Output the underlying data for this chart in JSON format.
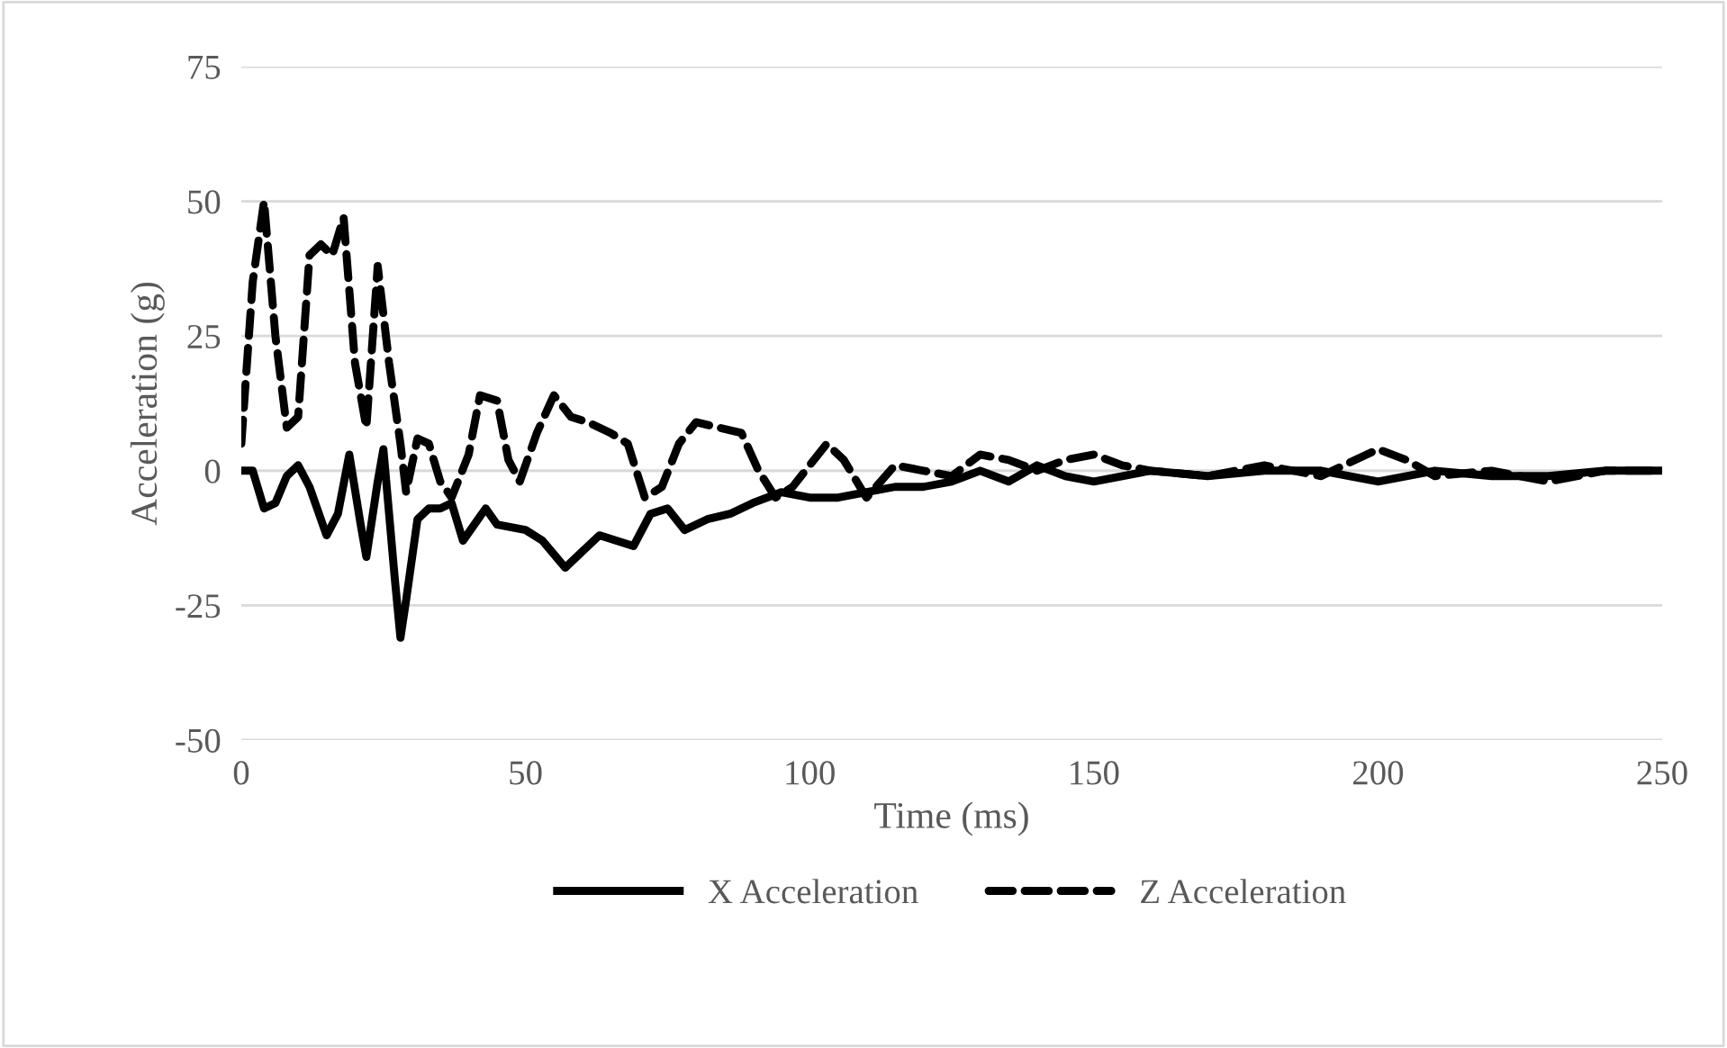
{
  "chart_data": {
    "type": "line",
    "xlabel": "Time (ms)",
    "ylabel": "Acceleration (g)",
    "xlim": [
      0,
      250
    ],
    "xticks": [
      0,
      50,
      100,
      150,
      200,
      250
    ],
    "ylim": [
      -50,
      75
    ],
    "yticks": [
      -50,
      -25,
      0,
      25,
      50,
      75
    ],
    "grid": "y",
    "legend": "bottom",
    "marker": "none",
    "series": [
      {
        "name": "X Acceleration",
        "color": "#000000",
        "line_style": "solid",
        "x": [
          0,
          2,
          4,
          6,
          8,
          10,
          12,
          15,
          17,
          19,
          21,
          22,
          24,
          25,
          27,
          28,
          29,
          31,
          33,
          35,
          37,
          39,
          41,
          43,
          45,
          50,
          53,
          57,
          60,
          63,
          66,
          69,
          72,
          75,
          78,
          82,
          86,
          90,
          95,
          100,
          105,
          110,
          115,
          120,
          125,
          130,
          135,
          140,
          145,
          150,
          155,
          160,
          170,
          180,
          190,
          200,
          210,
          220,
          230,
          240,
          250
        ],
        "values": [
          0,
          0,
          -7,
          -6,
          -1,
          1,
          -3,
          -12,
          -8,
          3,
          -10,
          -16,
          -2,
          4,
          -20,
          -31,
          -24,
          -9,
          -7,
          -7,
          -6,
          -13,
          -10,
          -7,
          -10,
          -11,
          -13,
          -18,
          -15,
          -12,
          -13,
          -14,
          -8,
          -7,
          -11,
          -9,
          -8,
          -6,
          -4,
          -5,
          -5,
          -4,
          -3,
          -3,
          -2,
          0,
          -2,
          1,
          -1,
          -2,
          -1,
          0,
          -1,
          0,
          0,
          -2,
          0,
          -1,
          -1,
          0,
          0
        ]
      },
      {
        "name": "Z Acceleration",
        "color": "#000000",
        "line_style": "dashed",
        "x": [
          0,
          2,
          4,
          6,
          8,
          10,
          12,
          14,
          16,
          18,
          20,
          22,
          24,
          26,
          28,
          29,
          31,
          33,
          35,
          37,
          40,
          42,
          45,
          47,
          49,
          52,
          55,
          58,
          61,
          65,
          68,
          71,
          74,
          77,
          80,
          84,
          88,
          91,
          94,
          97,
          100,
          103,
          106,
          110,
          115,
          120,
          125,
          130,
          135,
          140,
          145,
          150,
          155,
          160,
          170,
          180,
          190,
          200,
          205,
          210,
          220,
          230,
          240,
          250
        ],
        "values": [
          5,
          35,
          50,
          25,
          8,
          10,
          40,
          42,
          40,
          47,
          20,
          8,
          38,
          20,
          5,
          -4,
          6,
          5,
          -2,
          -5,
          3,
          14,
          13,
          2,
          -2,
          7,
          14,
          10,
          9,
          7,
          5,
          -5,
          -3,
          5,
          9,
          8,
          7,
          0,
          -5,
          -3,
          1,
          5,
          2,
          -5,
          1,
          0,
          -1,
          3,
          2,
          0,
          2,
          3,
          1,
          0,
          -1,
          1,
          -1,
          4,
          2,
          -1,
          0,
          -2,
          0,
          0
        ]
      }
    ]
  }
}
